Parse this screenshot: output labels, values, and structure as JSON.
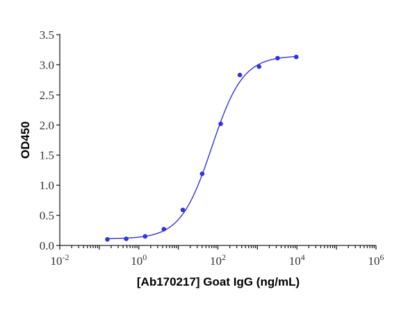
{
  "chart_data": {
    "type": "scatter",
    "title": "",
    "xlabel": "[Ab170217] Goat IgG (ng/mL)",
    "ylabel": "OD450",
    "xscale": "log",
    "xlim": [
      0.01,
      1000000
    ],
    "ylim": [
      0,
      3.5
    ],
    "x_ticks": [
      {
        "base": "10",
        "exp": "-2",
        "value": 0.01
      },
      {
        "base": "10",
        "exp": "0",
        "value": 1
      },
      {
        "base": "10",
        "exp": "2",
        "value": 100
      },
      {
        "base": "10",
        "exp": "4",
        "value": 10000
      },
      {
        "base": "10",
        "exp": "6",
        "value": 1000000
      }
    ],
    "y_ticks": [
      "0.0",
      "0.5",
      "1.0",
      "1.5",
      "2.0",
      "2.5",
      "3.0",
      "3.5"
    ],
    "grid": false,
    "legend": null,
    "series": [
      {
        "name": "Goat IgG",
        "color": "#3333dd",
        "x": [
          0.16,
          0.48,
          1.44,
          4.3,
          13,
          40,
          118,
          360,
          1100,
          3240,
          9600
        ],
        "y": [
          0.1,
          0.11,
          0.15,
          0.27,
          0.59,
          1.19,
          2.02,
          2.83,
          2.97,
          3.11,
          3.13
        ],
        "fit": {
          "type": "4PL",
          "bottom": 0.11,
          "top": 3.15,
          "ec50": 70,
          "hill": 1.1
        }
      }
    ]
  }
}
